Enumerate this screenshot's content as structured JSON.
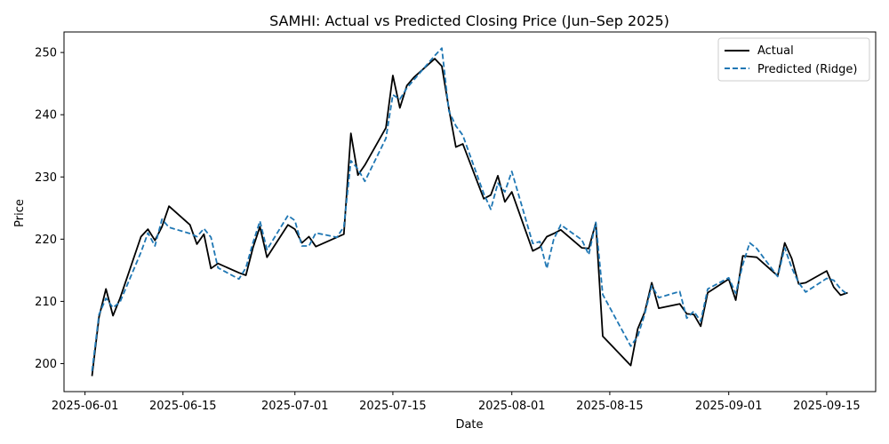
{
  "chart_data": {
    "type": "line",
    "title": "SAMHI: Actual vs Predicted Closing Price (Jun–Sep 2025)",
    "xlabel": "Date",
    "ylabel": "Price",
    "xlim": [
      "2025-05-29",
      "2025-09-22"
    ],
    "ylim": [
      195.5,
      253.3
    ],
    "x_ticks": [
      "2025-06-01",
      "2025-06-15",
      "2025-07-01",
      "2025-07-15",
      "2025-08-01",
      "2025-08-15",
      "2025-09-01",
      "2025-09-15"
    ],
    "y_ticks": [
      200,
      210,
      220,
      230,
      240,
      250
    ],
    "grid": false,
    "legend_position": "top-right",
    "series": [
      {
        "name": "Actual",
        "color": "#000000",
        "style": "solid",
        "points": [
          [
            "2025-06-02",
            198.0
          ],
          [
            "2025-06-03",
            207.5
          ],
          [
            "2025-06-04",
            212.0
          ],
          [
            "2025-06-05",
            207.7
          ],
          [
            "2025-06-06",
            210.5
          ],
          [
            "2025-06-09",
            220.4
          ],
          [
            "2025-06-10",
            221.6
          ],
          [
            "2025-06-11",
            219.8
          ],
          [
            "2025-06-12",
            222.0
          ],
          [
            "2025-06-13",
            225.3
          ],
          [
            "2025-06-16",
            222.3
          ],
          [
            "2025-06-17",
            219.2
          ],
          [
            "2025-06-18",
            220.8
          ],
          [
            "2025-06-19",
            215.3
          ],
          [
            "2025-06-20",
            216.1
          ],
          [
            "2025-06-23",
            214.6
          ],
          [
            "2025-06-24",
            214.2
          ],
          [
            "2025-06-25",
            218.6
          ],
          [
            "2025-06-26",
            222.0
          ],
          [
            "2025-06-27",
            217.1
          ],
          [
            "2025-06-30",
            222.3
          ],
          [
            "2025-07-01",
            221.6
          ],
          [
            "2025-07-02",
            219.4
          ],
          [
            "2025-07-03",
            220.4
          ],
          [
            "2025-07-04",
            218.8
          ],
          [
            "2025-07-07",
            220.3
          ],
          [
            "2025-07-08",
            220.8
          ],
          [
            "2025-07-09",
            237.0
          ],
          [
            "2025-07-10",
            230.3
          ],
          [
            "2025-07-11",
            231.9
          ],
          [
            "2025-07-14",
            237.9
          ],
          [
            "2025-07-15",
            246.3
          ],
          [
            "2025-07-16",
            241.1
          ],
          [
            "2025-07-17",
            244.7
          ],
          [
            "2025-07-18",
            246.0
          ],
          [
            "2025-07-21",
            249.0
          ],
          [
            "2025-07-22",
            247.8
          ],
          [
            "2025-07-23",
            241.0
          ],
          [
            "2025-07-24",
            234.8
          ],
          [
            "2025-07-25",
            235.3
          ],
          [
            "2025-07-28",
            226.5
          ],
          [
            "2025-07-29",
            227.1
          ],
          [
            "2025-07-30",
            230.2
          ],
          [
            "2025-07-31",
            226.0
          ],
          [
            "2025-08-01",
            227.6
          ],
          [
            "2025-08-04",
            218.1
          ],
          [
            "2025-08-05",
            218.7
          ],
          [
            "2025-08-06",
            220.4
          ],
          [
            "2025-08-07",
            220.9
          ],
          [
            "2025-08-08",
            221.5
          ],
          [
            "2025-08-11",
            218.6
          ],
          [
            "2025-08-12",
            218.5
          ],
          [
            "2025-08-13",
            222.6
          ],
          [
            "2025-08-14",
            204.4
          ],
          [
            "2025-08-18",
            199.7
          ],
          [
            "2025-08-19",
            205.6
          ],
          [
            "2025-08-20",
            208.3
          ],
          [
            "2025-08-21",
            213.0
          ],
          [
            "2025-08-22",
            208.9
          ],
          [
            "2025-08-25",
            209.6
          ],
          [
            "2025-08-26",
            208.0
          ],
          [
            "2025-08-27",
            207.9
          ],
          [
            "2025-08-28",
            206.0
          ],
          [
            "2025-08-29",
            211.4
          ],
          [
            "2025-09-01",
            213.6
          ],
          [
            "2025-09-02",
            210.2
          ],
          [
            "2025-09-03",
            217.3
          ],
          [
            "2025-09-04",
            217.2
          ],
          [
            "2025-09-05",
            217.1
          ],
          [
            "2025-09-08",
            214.1
          ],
          [
            "2025-09-09",
            219.4
          ],
          [
            "2025-09-10",
            216.9
          ],
          [
            "2025-09-11",
            212.8
          ],
          [
            "2025-09-12",
            213.0
          ],
          [
            "2025-09-15",
            214.9
          ],
          [
            "2025-09-16",
            212.3
          ],
          [
            "2025-09-17",
            211.0
          ],
          [
            "2025-09-18",
            211.4
          ]
        ]
      },
      {
        "name": "Predicted (Ridge)",
        "color": "#1f77b4",
        "style": "dashed",
        "points": [
          [
            "2025-06-02",
            198.8
          ],
          [
            "2025-06-03",
            207.9
          ],
          [
            "2025-06-04",
            210.5
          ],
          [
            "2025-06-05",
            209.0
          ],
          [
            "2025-06-06",
            209.9
          ],
          [
            "2025-06-09",
            217.9
          ],
          [
            "2025-06-10",
            221.0
          ],
          [
            "2025-06-11",
            218.9
          ],
          [
            "2025-06-12",
            223.2
          ],
          [
            "2025-06-13",
            221.9
          ],
          [
            "2025-06-16",
            220.9
          ],
          [
            "2025-06-17",
            220.4
          ],
          [
            "2025-06-18",
            221.7
          ],
          [
            "2025-06-19",
            220.3
          ],
          [
            "2025-06-20",
            215.4
          ],
          [
            "2025-06-23",
            213.6
          ],
          [
            "2025-06-24",
            215.4
          ],
          [
            "2025-06-25",
            219.4
          ],
          [
            "2025-06-26",
            222.9
          ],
          [
            "2025-06-27",
            218.3
          ],
          [
            "2025-06-30",
            223.8
          ],
          [
            "2025-07-01",
            223.0
          ],
          [
            "2025-07-02",
            218.9
          ],
          [
            "2025-07-03",
            218.9
          ],
          [
            "2025-07-04",
            221.0
          ],
          [
            "2025-07-07",
            220.3
          ],
          [
            "2025-07-08",
            222.0
          ],
          [
            "2025-07-09",
            232.6
          ],
          [
            "2025-07-10",
            231.3
          ],
          [
            "2025-07-11",
            229.3
          ],
          [
            "2025-07-14",
            236.2
          ],
          [
            "2025-07-15",
            243.2
          ],
          [
            "2025-07-16",
            242.5
          ],
          [
            "2025-07-17",
            244.3
          ],
          [
            "2025-07-18",
            245.6
          ],
          [
            "2025-07-21",
            249.5
          ],
          [
            "2025-07-22",
            250.7
          ],
          [
            "2025-07-23",
            240.6
          ],
          [
            "2025-07-24",
            238.2
          ],
          [
            "2025-07-25",
            236.7
          ],
          [
            "2025-07-28",
            227.3
          ],
          [
            "2025-07-29",
            224.8
          ],
          [
            "2025-07-30",
            229.0
          ],
          [
            "2025-07-31",
            227.6
          ],
          [
            "2025-08-01",
            230.9
          ],
          [
            "2025-08-04",
            219.3
          ],
          [
            "2025-08-05",
            219.6
          ],
          [
            "2025-08-06",
            215.3
          ],
          [
            "2025-08-07",
            220.0
          ],
          [
            "2025-08-08",
            222.3
          ],
          [
            "2025-08-11",
            219.9
          ],
          [
            "2025-08-12",
            217.5
          ],
          [
            "2025-08-13",
            222.7
          ],
          [
            "2025-08-14",
            211.1
          ],
          [
            "2025-08-18",
            202.8
          ],
          [
            "2025-08-19",
            204.4
          ],
          [
            "2025-08-20",
            208.0
          ],
          [
            "2025-08-21",
            212.5
          ],
          [
            "2025-08-22",
            210.6
          ],
          [
            "2025-08-25",
            211.6
          ],
          [
            "2025-08-26",
            207.3
          ],
          [
            "2025-08-27",
            208.4
          ],
          [
            "2025-08-28",
            206.8
          ],
          [
            "2025-08-29",
            212.0
          ],
          [
            "2025-09-01",
            213.8
          ],
          [
            "2025-09-02",
            211.3
          ],
          [
            "2025-09-03",
            215.9
          ],
          [
            "2025-09-04",
            219.4
          ],
          [
            "2025-09-05",
            218.5
          ],
          [
            "2025-09-08",
            214.0
          ],
          [
            "2025-09-09",
            218.6
          ],
          [
            "2025-09-10",
            215.4
          ],
          [
            "2025-09-11",
            213.0
          ],
          [
            "2025-09-12",
            211.5
          ],
          [
            "2025-09-15",
            213.7
          ],
          [
            "2025-09-16",
            213.4
          ],
          [
            "2025-09-17",
            212.0
          ],
          [
            "2025-09-18",
            211.1
          ]
        ]
      }
    ]
  }
}
